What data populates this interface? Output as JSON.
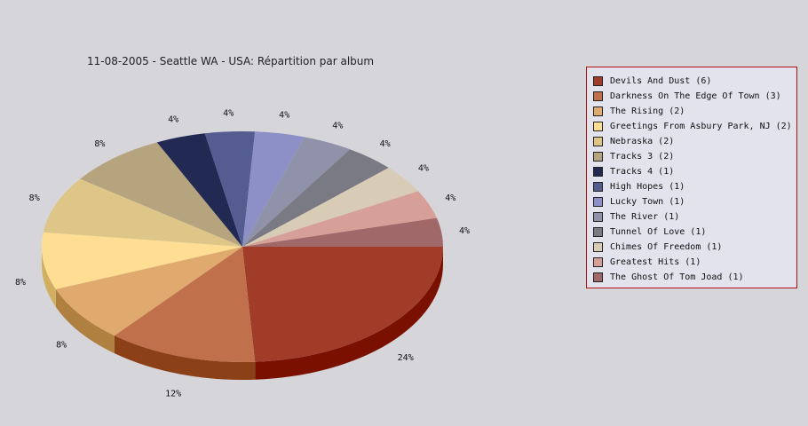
{
  "chart_data": {
    "type": "pie",
    "title": "11-08-2005 - Seattle WA - USA:  Répartition par album",
    "slices": [
      {
        "label": "Devils And Dust",
        "count": 6,
        "pct": "24%",
        "color": "#a03c28",
        "side": "#7a1000"
      },
      {
        "label": "Darkness On The Edge Of Town",
        "count": 3,
        "pct": "12%",
        "color": "#c0704a",
        "side": "#8c4018"
      },
      {
        "label": "The Rising",
        "count": 2,
        "pct": "8%",
        "color": "#e0aa6e",
        "side": "#b08040"
      },
      {
        "label": "Greetings From Asbury Park, NJ",
        "count": 2,
        "pct": "8%",
        "color": "#fede92",
        "side": "#d0b060"
      },
      {
        "label": "Nebraska",
        "count": 2,
        "pct": "8%",
        "color": "#dec688",
        "side": "#b09860"
      },
      {
        "label": "Tracks 3",
        "count": 2,
        "pct": "8%",
        "color": "#b6a47e",
        "side": "#8a7a58"
      },
      {
        "label": "Tracks 4",
        "count": 1,
        "pct": "4%",
        "color": "#222a54",
        "side": "#101838"
      },
      {
        "label": "High Hopes",
        "count": 1,
        "pct": "4%",
        "color": "#545c90",
        "side": "#343c70"
      },
      {
        "label": "Lucky Town",
        "count": 1,
        "pct": "4%",
        "color": "#8c90c6",
        "side": "#6a6ea0"
      },
      {
        "label": "The River",
        "count": 1,
        "pct": "4%",
        "color": "#9092aa",
        "side": "#707288"
      },
      {
        "label": "Tunnel Of Love",
        "count": 1,
        "pct": "4%",
        "color": "#7a7a84",
        "side": "#5a5a64"
      },
      {
        "label": "Chimes Of Freedom",
        "count": 1,
        "pct": "4%",
        "color": "#d8ccb6",
        "side": "#b0a48e"
      },
      {
        "label": "Greatest Hits",
        "count": 1,
        "pct": "4%",
        "color": "#d6a098",
        "side": "#b07870"
      },
      {
        "label": "The Ghost Of Tom Joad",
        "count": 1,
        "pct": "4%",
        "color": "#a06868",
        "side": "#784848"
      }
    ],
    "legend_position": "right"
  }
}
